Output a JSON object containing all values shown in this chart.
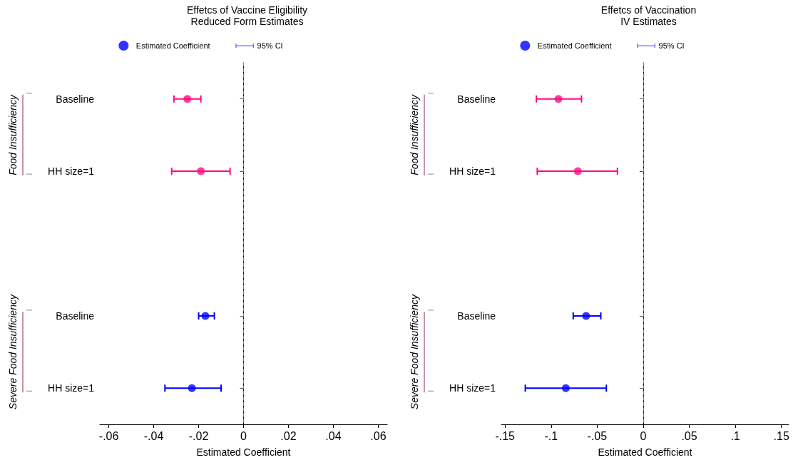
{
  "chart_data": [
    {
      "type": "scatter",
      "title": "Effetcs of Vaccine Eligibility",
      "subtitle": "Reduced Form Estimates",
      "xlabel": "Estimated Coefficient",
      "orientation": "horizontal",
      "categories": [
        "Baseline",
        "HH size=1",
        null,
        "Baseline",
        "HH size=1"
      ],
      "series": [
        {
          "name": "Estimated Coefficient",
          "color": "#0000ff",
          "colors": [
            "#ff0a80",
            "#ff0a80",
            null,
            "#0000ff",
            "#0000ff"
          ],
          "values": [
            -0.025,
            -0.019,
            null,
            -0.017,
            -0.023
          ],
          "errors": [
            [
              -0.031,
              -0.019
            ],
            [
              -0.032,
              -0.006
            ],
            null,
            [
              -0.02,
              -0.013
            ],
            [
              -0.035,
              -0.01
            ]
          ]
        }
      ],
      "annotations": [
        "95% CI",
        "Food Insufficiency",
        "Severe Food Insufficiency"
      ],
      "xlim": [
        -0.064,
        0.064
      ],
      "xticks": [
        {
          "value": -0.06,
          "label": "-.06"
        },
        {
          "value": -0.04,
          "label": "-.04"
        },
        {
          "value": -0.02,
          "label": "-.02"
        },
        0,
        {
          "value": 0.02,
          "label": ".02"
        },
        {
          "value": 0.04,
          "label": ".04"
        },
        {
          "value": 0.06,
          "label": ".06"
        }
      ],
      "ref_lines": [
        {
          "axis": "x",
          "value": 0,
          "label": null,
          "color": "#808080",
          "line_style": "dashed"
        }
      ],
      "marker": "circle",
      "grid": false,
      "legend": "top"
    },
    {
      "type": "scatter",
      "title": "Effetcs of Vaccination",
      "subtitle": "IV Estimates",
      "xlabel": "Estimated Coefficient",
      "orientation": "horizontal",
      "categories": [
        "Baseline",
        "HH size=1",
        null,
        "Baseline",
        "HH size=1"
      ],
      "series": [
        {
          "name": "Estimated Coefficient",
          "color": "#0000ff",
          "colors": [
            "#ff0a80",
            "#ff0a80",
            null,
            "#0000ff",
            "#0000ff"
          ],
          "values": [
            -0.092,
            -0.071,
            null,
            -0.062,
            -0.084
          ],
          "errors": [
            [
              -0.116,
              -0.067
            ],
            [
              -0.115,
              -0.028
            ],
            null,
            [
              -0.076,
              -0.046
            ],
            [
              -0.128,
              -0.04
            ]
          ]
        }
      ],
      "annotations": [
        "95% CI",
        "Food Insufficiency",
        "Severe Food Insufficiency"
      ],
      "xlim": [
        -0.154,
        0.158
      ],
      "xticks": [
        {
          "value": -0.15,
          "label": "-.15"
        },
        {
          "value": -0.1,
          "label": "-.1"
        },
        {
          "value": -0.05,
          "label": "-.05"
        },
        0,
        {
          "value": 0.05,
          "label": ".05"
        },
        {
          "value": 0.1,
          "label": ".1"
        },
        {
          "value": 0.15,
          "label": ".15"
        }
      ],
      "ref_lines": [
        {
          "axis": "x",
          "value": 0,
          "label": null,
          "color": "#808080",
          "line_style": "dashed"
        }
      ],
      "marker": "circle",
      "grid": false,
      "legend": "top"
    }
  ]
}
